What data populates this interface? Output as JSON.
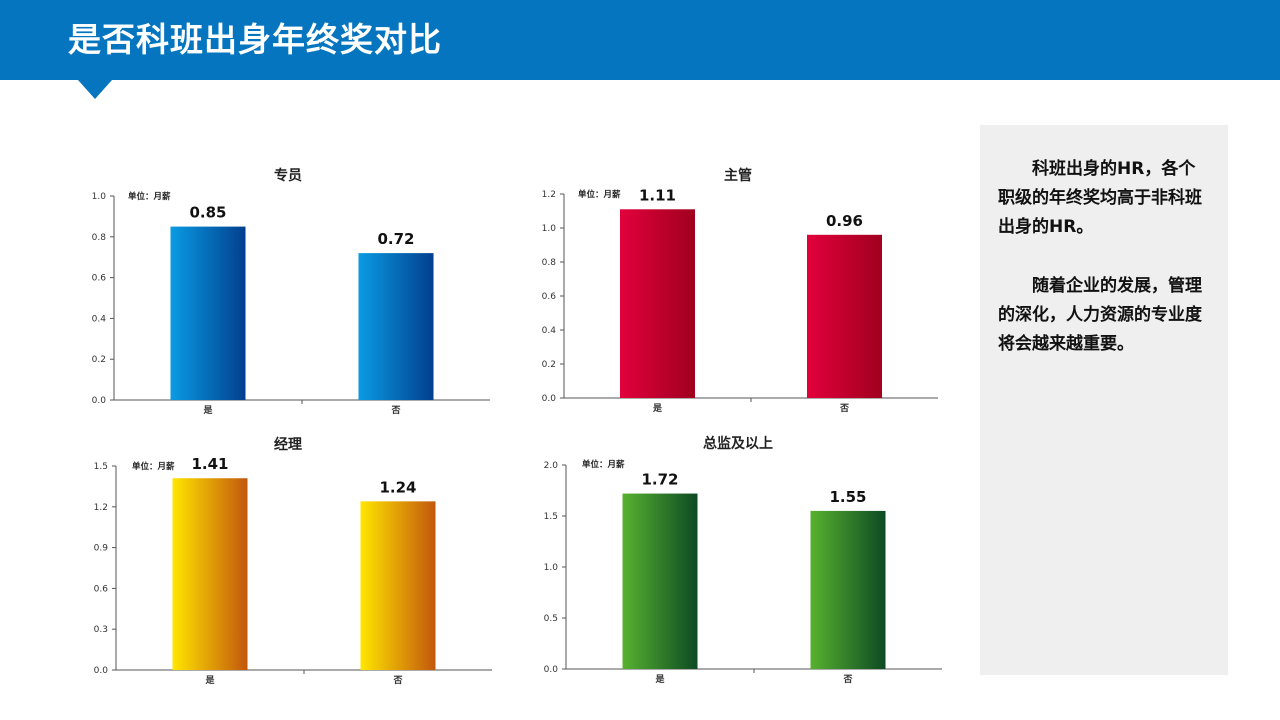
{
  "header": {
    "title": "是否科班出身年终奖对比",
    "bg_color": "#0575c0"
  },
  "side_panel": {
    "paragraphs": [
      "科班出身的HR，各个职级的年终奖均高于非科班出身的HR。",
      "随着企业的发展，管理的深化，人力资源的专业度将会越来越重要。"
    ]
  },
  "chart_data": [
    {
      "type": "bar",
      "title": "专员",
      "unit": "单位：月薪",
      "categories": [
        "是",
        "否"
      ],
      "values": [
        0.85,
        0.72
      ],
      "ylim": [
        0,
        1.0
      ],
      "yticks": [
        "0.0",
        "0.2",
        "0.4",
        "0.6",
        "0.8",
        "1.0"
      ],
      "colors": [
        "#0a9be3",
        "#023f8e"
      ]
    },
    {
      "type": "bar",
      "title": "主管",
      "unit": "单位：月薪",
      "categories": [
        "是",
        "否"
      ],
      "values": [
        1.11,
        0.96
      ],
      "ylim": [
        0,
        1.2
      ],
      "yticks": [
        "0.0",
        "0.2",
        "0.4",
        "0.6",
        "0.8",
        "1.0",
        "1.2"
      ],
      "colors": [
        "#e2003c",
        "#a0001e"
      ]
    },
    {
      "type": "bar",
      "title": "经理",
      "unit": "单位：月薪",
      "categories": [
        "是",
        "否"
      ],
      "values": [
        1.41,
        1.24
      ],
      "ylim": [
        0,
        1.5
      ],
      "yticks": [
        "0.0",
        "0.3",
        "0.6",
        "0.9",
        "1.2",
        "1.5"
      ],
      "colors": [
        "#ffe600",
        "#c2570d"
      ]
    },
    {
      "type": "bar",
      "title": "总监及以上",
      "unit": "单位：月薪",
      "categories": [
        "是",
        "否"
      ],
      "values": [
        1.72,
        1.55
      ],
      "ylim": [
        0,
        2.0
      ],
      "yticks": [
        "0.0",
        "0.5",
        "1.0",
        "1.5",
        "2.0"
      ],
      "colors": [
        "#57b22f",
        "#0d4a24"
      ]
    }
  ]
}
